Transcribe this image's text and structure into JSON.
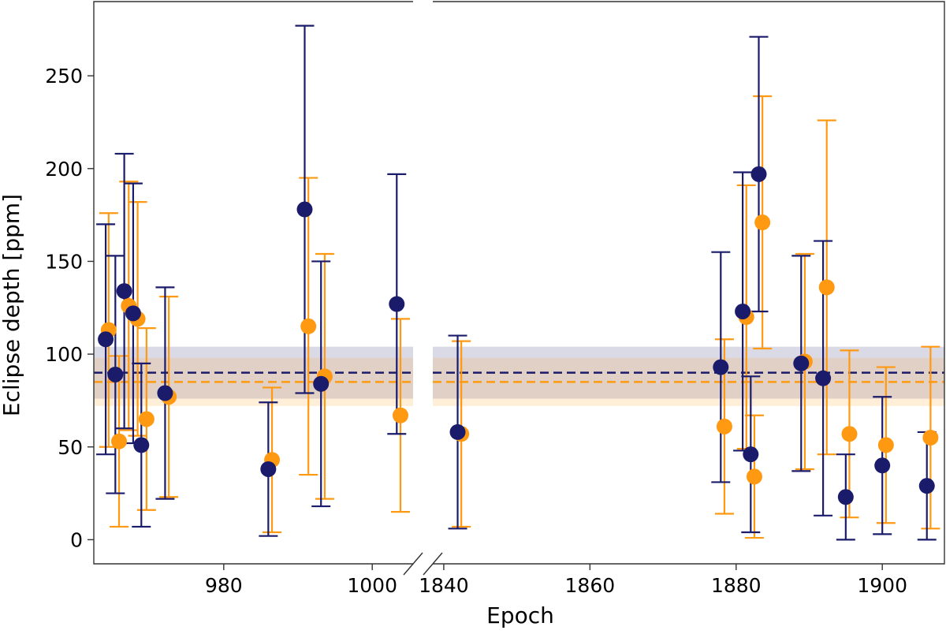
{
  "chart_data": {
    "type": "scatter",
    "title": "",
    "xlabel": "Epoch",
    "ylabel": "Eclipse depth [ppm]",
    "broken_x_axis": true,
    "panels": [
      {
        "xlim": [
          962.5,
          1005.5
        ],
        "xticks": [
          980,
          1000
        ]
      },
      {
        "xlim": [
          1838.5,
          1908.5
        ],
        "xticks": [
          1840,
          1860,
          1880,
          1900
        ]
      }
    ],
    "ylim": [
      -13,
      290
    ],
    "yticks": [
      0,
      50,
      100,
      150,
      200,
      250
    ],
    "grid": false,
    "legend": "none",
    "series": [
      {
        "color": "#1b1b6b",
        "mean": 90,
        "band": [
          76,
          104
        ],
        "points": [
          {
            "x": 964.1,
            "y": 108,
            "err": 62
          },
          {
            "x": 965.4,
            "y": 89,
            "err": 64
          },
          {
            "x": 966.6,
            "y": 134,
            "err": 74
          },
          {
            "x": 967.8,
            "y": 122,
            "err": 70
          },
          {
            "x": 968.9,
            "y": 51,
            "err": 44
          },
          {
            "x": 972.1,
            "y": 79,
            "err": 57
          },
          {
            "x": 986.0,
            "y": 38,
            "err": 36
          },
          {
            "x": 990.9,
            "y": 178,
            "err": 99
          },
          {
            "x": 993.1,
            "y": 84,
            "err": 66
          },
          {
            "x": 1003.3,
            "y": 127,
            "err": 70
          },
          {
            "x": 1841.9,
            "y": 58,
            "err": 52
          },
          {
            "x": 1877.9,
            "y": 93,
            "err": 62
          },
          {
            "x": 1880.9,
            "y": 123,
            "err": 75
          },
          {
            "x": 1882.0,
            "y": 46,
            "err": 42
          },
          {
            "x": 1883.1,
            "y": 197,
            "err": 74
          },
          {
            "x": 1888.9,
            "y": 95,
            "err": 58
          },
          {
            "x": 1891.9,
            "y": 87,
            "err": 74
          },
          {
            "x": 1895.0,
            "y": 23,
            "err": 23
          },
          {
            "x": 1900.0,
            "y": 40,
            "err": 37
          },
          {
            "x": 1906.1,
            "y": 29,
            "err": 29
          }
        ]
      },
      {
        "color": "#ff9912",
        "mean": 85,
        "band": [
          72,
          98
        ],
        "points": [
          {
            "x": 964.5,
            "y": 113,
            "err": 63
          },
          {
            "x": 965.9,
            "y": 53,
            "err": 46
          },
          {
            "x": 967.2,
            "y": 126,
            "err": 67
          },
          {
            "x": 968.4,
            "y": 119,
            "err": 63
          },
          {
            "x": 969.6,
            "y": 65,
            "err": 49
          },
          {
            "x": 972.6,
            "y": 77,
            "err": 54
          },
          {
            "x": 986.5,
            "y": 43,
            "err": 39
          },
          {
            "x": 991.4,
            "y": 115,
            "err": 80
          },
          {
            "x": 993.6,
            "y": 88,
            "err": 66
          },
          {
            "x": 1003.8,
            "y": 67,
            "err": 52
          },
          {
            "x": 1842.4,
            "y": 57,
            "err": 50
          },
          {
            "x": 1878.4,
            "y": 61,
            "err": 47
          },
          {
            "x": 1881.4,
            "y": 120,
            "err": 71
          },
          {
            "x": 1882.5,
            "y": 34,
            "err": 33
          },
          {
            "x": 1883.6,
            "y": 171,
            "err": 68
          },
          {
            "x": 1889.4,
            "y": 96,
            "err": 58
          },
          {
            "x": 1892.4,
            "y": 136,
            "err": 90
          },
          {
            "x": 1895.5,
            "y": 57,
            "err": 45
          },
          {
            "x": 1900.5,
            "y": 51,
            "err": 42
          },
          {
            "x": 1906.6,
            "y": 55,
            "err": 49
          }
        ]
      }
    ]
  }
}
